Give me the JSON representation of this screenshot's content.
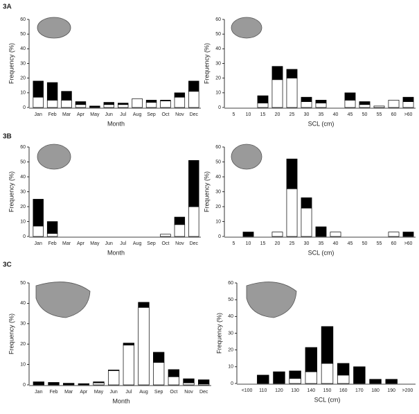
{
  "figure_labels": [
    "3A",
    "3B",
    "3C"
  ],
  "chart_data": [
    {
      "type": "stacked-bar",
      "xlabel": "Month",
      "ylabel": "Frequency (%)",
      "categories": [
        "Jan",
        "Feb",
        "Mar",
        "Apr",
        "May",
        "Jun",
        "Jul",
        "Aug",
        "Sep",
        "Oct",
        "Nov",
        "Dec"
      ],
      "series": [
        {
          "color": "#ffffff",
          "values": [
            7,
            5,
            5,
            2,
            0,
            2,
            2,
            6,
            3.5,
            4.5,
            7,
            11
          ]
        },
        {
          "color": "#000000",
          "values": [
            11,
            12,
            6,
            2,
            1,
            1.5,
            1,
            0,
            1.5,
            0.5,
            3,
            7
          ]
        }
      ],
      "ylim": [
        0,
        60
      ],
      "yticks": [
        0,
        10,
        20,
        30,
        40,
        50,
        60
      ]
    },
    {
      "type": "stacked-bar",
      "xlabel": "SCL (cm)",
      "ylabel": "Frequency (%)",
      "categories": [
        "5",
        "10",
        "15",
        "20",
        "25",
        "30",
        "35",
        "40",
        "45",
        "50",
        "55",
        "60",
        ">60"
      ],
      "series": [
        {
          "color": "#ffffff",
          "values": [
            0,
            0,
            3,
            19,
            20,
            4,
            3,
            0,
            5,
            2,
            1,
            5,
            4
          ]
        },
        {
          "color": "#000000",
          "values": [
            0,
            0,
            5,
            9,
            6,
            3,
            2,
            0,
            5,
            2,
            0,
            0,
            3
          ]
        }
      ],
      "ylim": [
        0,
        60
      ],
      "yticks": [
        0,
        10,
        20,
        30,
        40,
        50,
        60
      ]
    },
    {
      "type": "stacked-bar",
      "xlabel": "Month",
      "ylabel": "Frequency (%)",
      "categories": [
        "Jan",
        "Feb",
        "Mar",
        "Apr",
        "May",
        "Jun",
        "Jul",
        "Aug",
        "Sep",
        "Oct",
        "Nov",
        "Dec"
      ],
      "series": [
        {
          "color": "#ffffff",
          "values": [
            7,
            2,
            0,
            0,
            0,
            0,
            0,
            0,
            0,
            1.5,
            8,
            20
          ]
        },
        {
          "color": "#000000",
          "values": [
            18,
            8,
            0,
            0,
            0,
            0,
            0,
            0,
            0,
            0,
            5,
            31
          ]
        }
      ],
      "ylim": [
        0,
        60
      ],
      "yticks": [
        0,
        10,
        20,
        30,
        40,
        50,
        60
      ]
    },
    {
      "type": "stacked-bar",
      "xlabel": "SCL (cm)",
      "ylabel": "Frequency (%)",
      "categories": [
        "5",
        "10",
        "15",
        "20",
        "25",
        "30",
        "35",
        "40",
        "45",
        "50",
        "55",
        "60",
        ">60"
      ],
      "series": [
        {
          "color": "#ffffff",
          "values": [
            0,
            0,
            0,
            3,
            32,
            19,
            0,
            3,
            0,
            0,
            0,
            3,
            0
          ]
        },
        {
          "color": "#000000",
          "values": [
            0,
            3,
            0,
            0,
            20,
            7,
            6.5,
            0,
            0,
            0,
            0,
            0,
            3
          ]
        }
      ],
      "ylim": [
        0,
        60
      ],
      "yticks": [
        0,
        10,
        20,
        30,
        40,
        50,
        60
      ]
    },
    {
      "type": "stacked-bar",
      "xlabel": "Month",
      "ylabel": "Frequency (%)",
      "categories": [
        "Jan",
        "Feb",
        "Mar",
        "Apr",
        "May",
        "Jun",
        "Jul",
        "Aug",
        "Sep",
        "Oct",
        "Nov",
        "Dec"
      ],
      "series": [
        {
          "color": "#ffffff",
          "values": [
            0,
            0,
            0,
            0,
            1,
            7,
            19.5,
            38,
            11,
            4,
            1,
            0.5
          ]
        },
        {
          "color": "#000000",
          "values": [
            1.5,
            1.2,
            0.8,
            0.6,
            0.5,
            0.3,
            1,
            2.5,
            5,
            3.5,
            2,
            2
          ]
        }
      ],
      "ylim": [
        0,
        50
      ],
      "yticks": [
        0,
        10,
        20,
        30,
        40,
        50
      ]
    },
    {
      "type": "stacked-bar",
      "xlabel": "SCL (cm)",
      "ylabel": "Frequency (%)",
      "categories": [
        "<100",
        "110",
        "120",
        "130",
        "140",
        "150",
        "160",
        "170",
        "180",
        "190",
        ">200"
      ],
      "series": [
        {
          "color": "#ffffff",
          "values": [
            0,
            0,
            0,
            3,
            7,
            12,
            5,
            0,
            0,
            0,
            0
          ]
        },
        {
          "color": "#000000",
          "values": [
            0,
            5,
            7,
            4.5,
            14.5,
            22,
            7,
            10,
            2.5,
            2.5,
            0
          ]
        }
      ],
      "ylim": [
        0,
        60
      ],
      "yticks": [
        0,
        10,
        20,
        30,
        40,
        50,
        60
      ]
    }
  ]
}
